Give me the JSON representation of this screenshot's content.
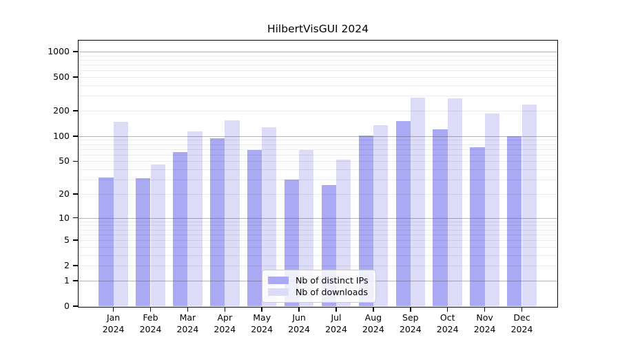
{
  "chart_data": {
    "type": "bar",
    "title": "HilbertVisGUI 2024",
    "categories": [
      "Jan",
      "Feb",
      "Mar",
      "Apr",
      "May",
      "Jun",
      "Jul",
      "Aug",
      "Sep",
      "Oct",
      "Nov",
      "Dec"
    ],
    "category_year": "2024",
    "series": [
      {
        "name": "Nb of distinct IPs",
        "color": "#a9a9f4",
        "values": [
          32,
          31,
          65,
          94,
          68,
          30,
          26,
          101,
          152,
          121,
          74,
          100
        ]
      },
      {
        "name": "Nb of downloads",
        "color": "#dcdcf8",
        "values": [
          147,
          46,
          113,
          155,
          127,
          68,
          52,
          136,
          287,
          280,
          186,
          238
        ]
      }
    ],
    "y_scale": "log1p",
    "y_ticks": [
      0,
      1,
      2,
      5,
      10,
      20,
      50,
      100,
      200,
      500,
      1000
    ],
    "y_range": [
      0,
      1376
    ],
    "grid": {
      "horizontal": true,
      "major_at": [
        1,
        10,
        100,
        1000
      ],
      "minor_multiples_per_decade": [
        2,
        3,
        4,
        5,
        6,
        7,
        8,
        9
      ]
    },
    "legend": {
      "entries": [
        "Nb of distinct IPs",
        "Nb of downloads"
      ]
    }
  },
  "colors": {
    "background": "#ffffff",
    "axis": "#000000",
    "bar_distinct_ips": "#a9a9f4",
    "bar_downloads": "#dcdcf8",
    "grid_major": "rgba(85,85,95,0.45)",
    "grid_minor": "rgba(0,0,0,0.08)",
    "legend_border": "#cccccc"
  }
}
